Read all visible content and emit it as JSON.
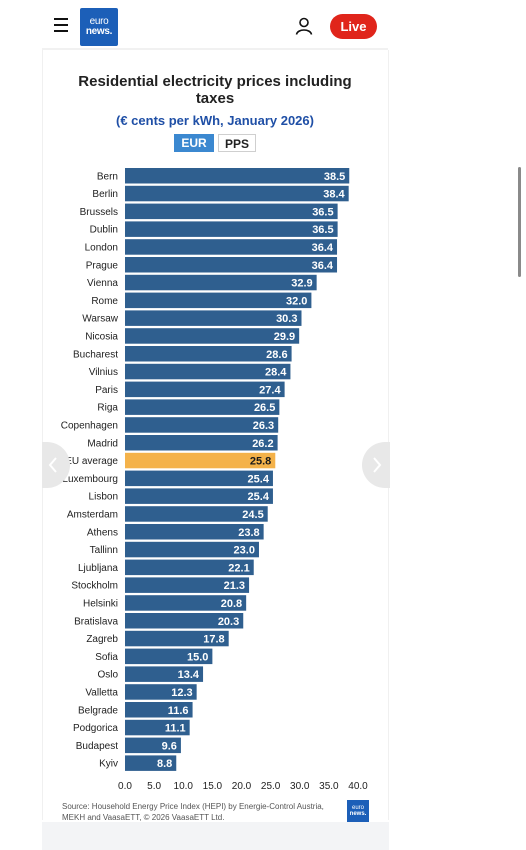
{
  "header": {
    "logo_line1": "euro",
    "logo_line2": "news.",
    "live_label": "Live",
    "icons": [
      "hamburger-menu-icon",
      "user-icon"
    ]
  },
  "chart_controls": {
    "eur_label": "EUR",
    "pps_label": "PPS",
    "selected": "EUR"
  },
  "footer": {
    "source": "Source: Household Energy Price Index (HEPI) by Energie-Control Austria, MEKH and VaasaETT, © 2026 VaasaETT Ltd.",
    "logo_line1": "euro",
    "logo_line2": "news."
  },
  "chart_data": {
    "type": "bar",
    "orientation": "horizontal",
    "title": "Residential electricity prices including taxes",
    "subtitle": "(€ cents per kWh, January 2026)",
    "categories": [
      "Bern",
      "Berlin",
      "Brussels",
      "Dublin",
      "London",
      "Prague",
      "Vienna",
      "Rome",
      "Warsaw",
      "Nicosia",
      "Bucharest",
      "Vilnius",
      "Paris",
      "Riga",
      "Copenhagen",
      "Madrid",
      "EU average",
      "Luxembourg",
      "Lisbon",
      "Amsterdam",
      "Athens",
      "Tallinn",
      "Ljubljana",
      "Stockholm",
      "Helsinki",
      "Bratislava",
      "Zagreb",
      "Sofia",
      "Oslo",
      "Valletta",
      "Belgrade",
      "Podgorica",
      "Budapest",
      "Kyiv"
    ],
    "values": [
      38.5,
      38.4,
      36.5,
      36.5,
      36.4,
      36.4,
      32.9,
      32.0,
      30.3,
      29.9,
      28.6,
      28.4,
      27.4,
      26.5,
      26.3,
      26.2,
      25.8,
      25.4,
      25.4,
      24.5,
      23.8,
      23.0,
      22.1,
      21.3,
      20.8,
      20.3,
      17.8,
      15.0,
      13.4,
      12.3,
      11.6,
      11.1,
      9.6,
      8.8
    ],
    "value_labels": [
      "38.5",
      "38.4",
      "36.5",
      "36.5",
      "36.4",
      "36.4",
      "32.9",
      "32.0",
      "30.3",
      "29.9",
      "28.6",
      "28.4",
      "27.4",
      "26.5",
      "26.3",
      "26.2",
      "25.8",
      "25.4",
      "25.4",
      "24.5",
      "23.8",
      "23.0",
      "22.1",
      "21.3",
      "20.8",
      "20.3",
      "17.8",
      "15.0",
      "13.4",
      "12.3",
      "11.6",
      "11.1",
      "9.6",
      "8.8"
    ],
    "highlight": "EU average",
    "xlim": [
      0,
      40
    ],
    "xticks": [
      "0.0",
      "5.0",
      "10.0",
      "15.0",
      "20.0",
      "25.0",
      "30.0",
      "35.0",
      "40.0"
    ],
    "colors": {
      "bar": "#2f5f8f",
      "highlight": "#f4b24a",
      "label_text": "#ffffff",
      "highlight_label_text": "#1a1a1a"
    },
    "grid": false
  }
}
